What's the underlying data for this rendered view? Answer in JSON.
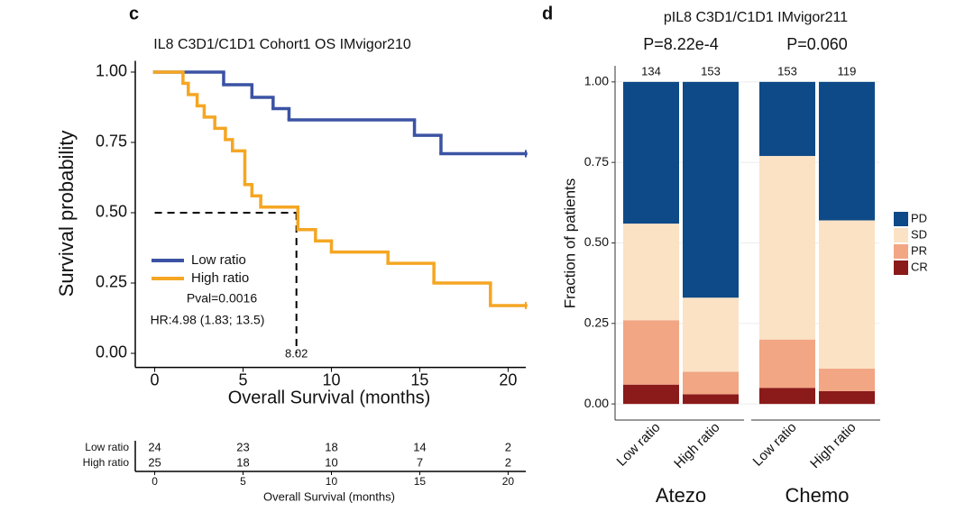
{
  "chart_data": [
    {
      "type": "km",
      "panel": "c",
      "title": "IL8 C3D1/C1D1 Cohort1 OS IMvigor210",
      "x_label": "Overall Survival (months)",
      "y_label": "Survival probability",
      "xlim": [
        -1.1,
        21
      ],
      "ylim": [
        -0.05,
        1.04
      ],
      "xticks": [
        0,
        5,
        10,
        15,
        20
      ],
      "yticks": [
        {
          "value": 0,
          "label": "0.00"
        },
        {
          "value": 0.25,
          "label": "0.25"
        },
        {
          "value": 0.5,
          "label": "0.50"
        },
        {
          "value": 0.75,
          "label": "0.75"
        },
        {
          "value": 1,
          "label": "1.00"
        }
      ],
      "series": [
        {
          "name": "Low ratio",
          "color": "#3b53a4",
          "x": [
            0,
            3.9,
            5.5,
            6.7,
            7.6,
            14.7,
            16.2,
            21
          ],
          "values": [
            1,
            0.955,
            0.91,
            0.87,
            0.83,
            0.775,
            0.71,
            0.71
          ]
        },
        {
          "name": "High ratio",
          "color": "#f5a623",
          "x": [
            0,
            1.6,
            1.9,
            2.4,
            2.8,
            3.4,
            4.0,
            4.4,
            5.1,
            5.5,
            6.0,
            8.1,
            9.1,
            10.0,
            13.2,
            15.8,
            19.0,
            21
          ],
          "values": [
            1,
            0.96,
            0.92,
            0.88,
            0.84,
            0.8,
            0.76,
            0.72,
            0.6,
            0.56,
            0.52,
            0.44,
            0.4,
            0.36,
            0.32,
            0.25,
            0.17,
            0.17
          ]
        }
      ],
      "median": 8.02,
      "annotations": [
        "Pval=0.0016",
        "HR:4.98 (1.83; 13.5)"
      ],
      "risk_table": {
        "x_label": "Overall Survival (months)",
        "times": [
          0,
          5,
          10,
          15,
          20
        ],
        "rows": [
          {
            "name": "Low ratio",
            "values": [
              24,
              23,
              18,
              14,
              2
            ]
          },
          {
            "name": "High ratio",
            "values": [
              25,
              18,
              10,
              7,
              2
            ]
          }
        ]
      }
    },
    {
      "type": "stacked-bar",
      "panel": "d",
      "title": "pIL8 C3D1/C1D1 IMvigor211",
      "y_label": "Fraction of patients",
      "categories": [
        "Low ratio",
        "High ratio",
        "Low ratio",
        "High ratio"
      ],
      "groups": [
        {
          "label": "Atezo",
          "p": "P=8.22e-4"
        },
        {
          "label": "Chemo",
          "p": "P=0.060"
        }
      ],
      "n": [
        134,
        153,
        153,
        119
      ],
      "ylim": [
        -0.05,
        1.05
      ],
      "yticks": [
        {
          "value": 0,
          "label": "0.00"
        },
        {
          "value": 0.25,
          "label": "0.25"
        },
        {
          "value": 0.5,
          "label": "0.50"
        },
        {
          "value": 0.75,
          "label": "0.75"
        },
        {
          "value": 1,
          "label": "1.00"
        }
      ],
      "grid": true,
      "series": [
        {
          "name": "CR",
          "color": "#8b1a1a",
          "values": [
            0.06,
            0.03,
            0.05,
            0.04
          ]
        },
        {
          "name": "PR",
          "color": "#f2a683",
          "values": [
            0.2,
            0.07,
            0.15,
            0.07
          ]
        },
        {
          "name": "SD",
          "color": "#fbe2c5",
          "values": [
            0.3,
            0.23,
            0.57,
            0.46
          ]
        },
        {
          "name": "PD",
          "color": "#0e4a87",
          "values": [
            0.44,
            0.67,
            0.23,
            0.43
          ]
        }
      ]
    }
  ]
}
